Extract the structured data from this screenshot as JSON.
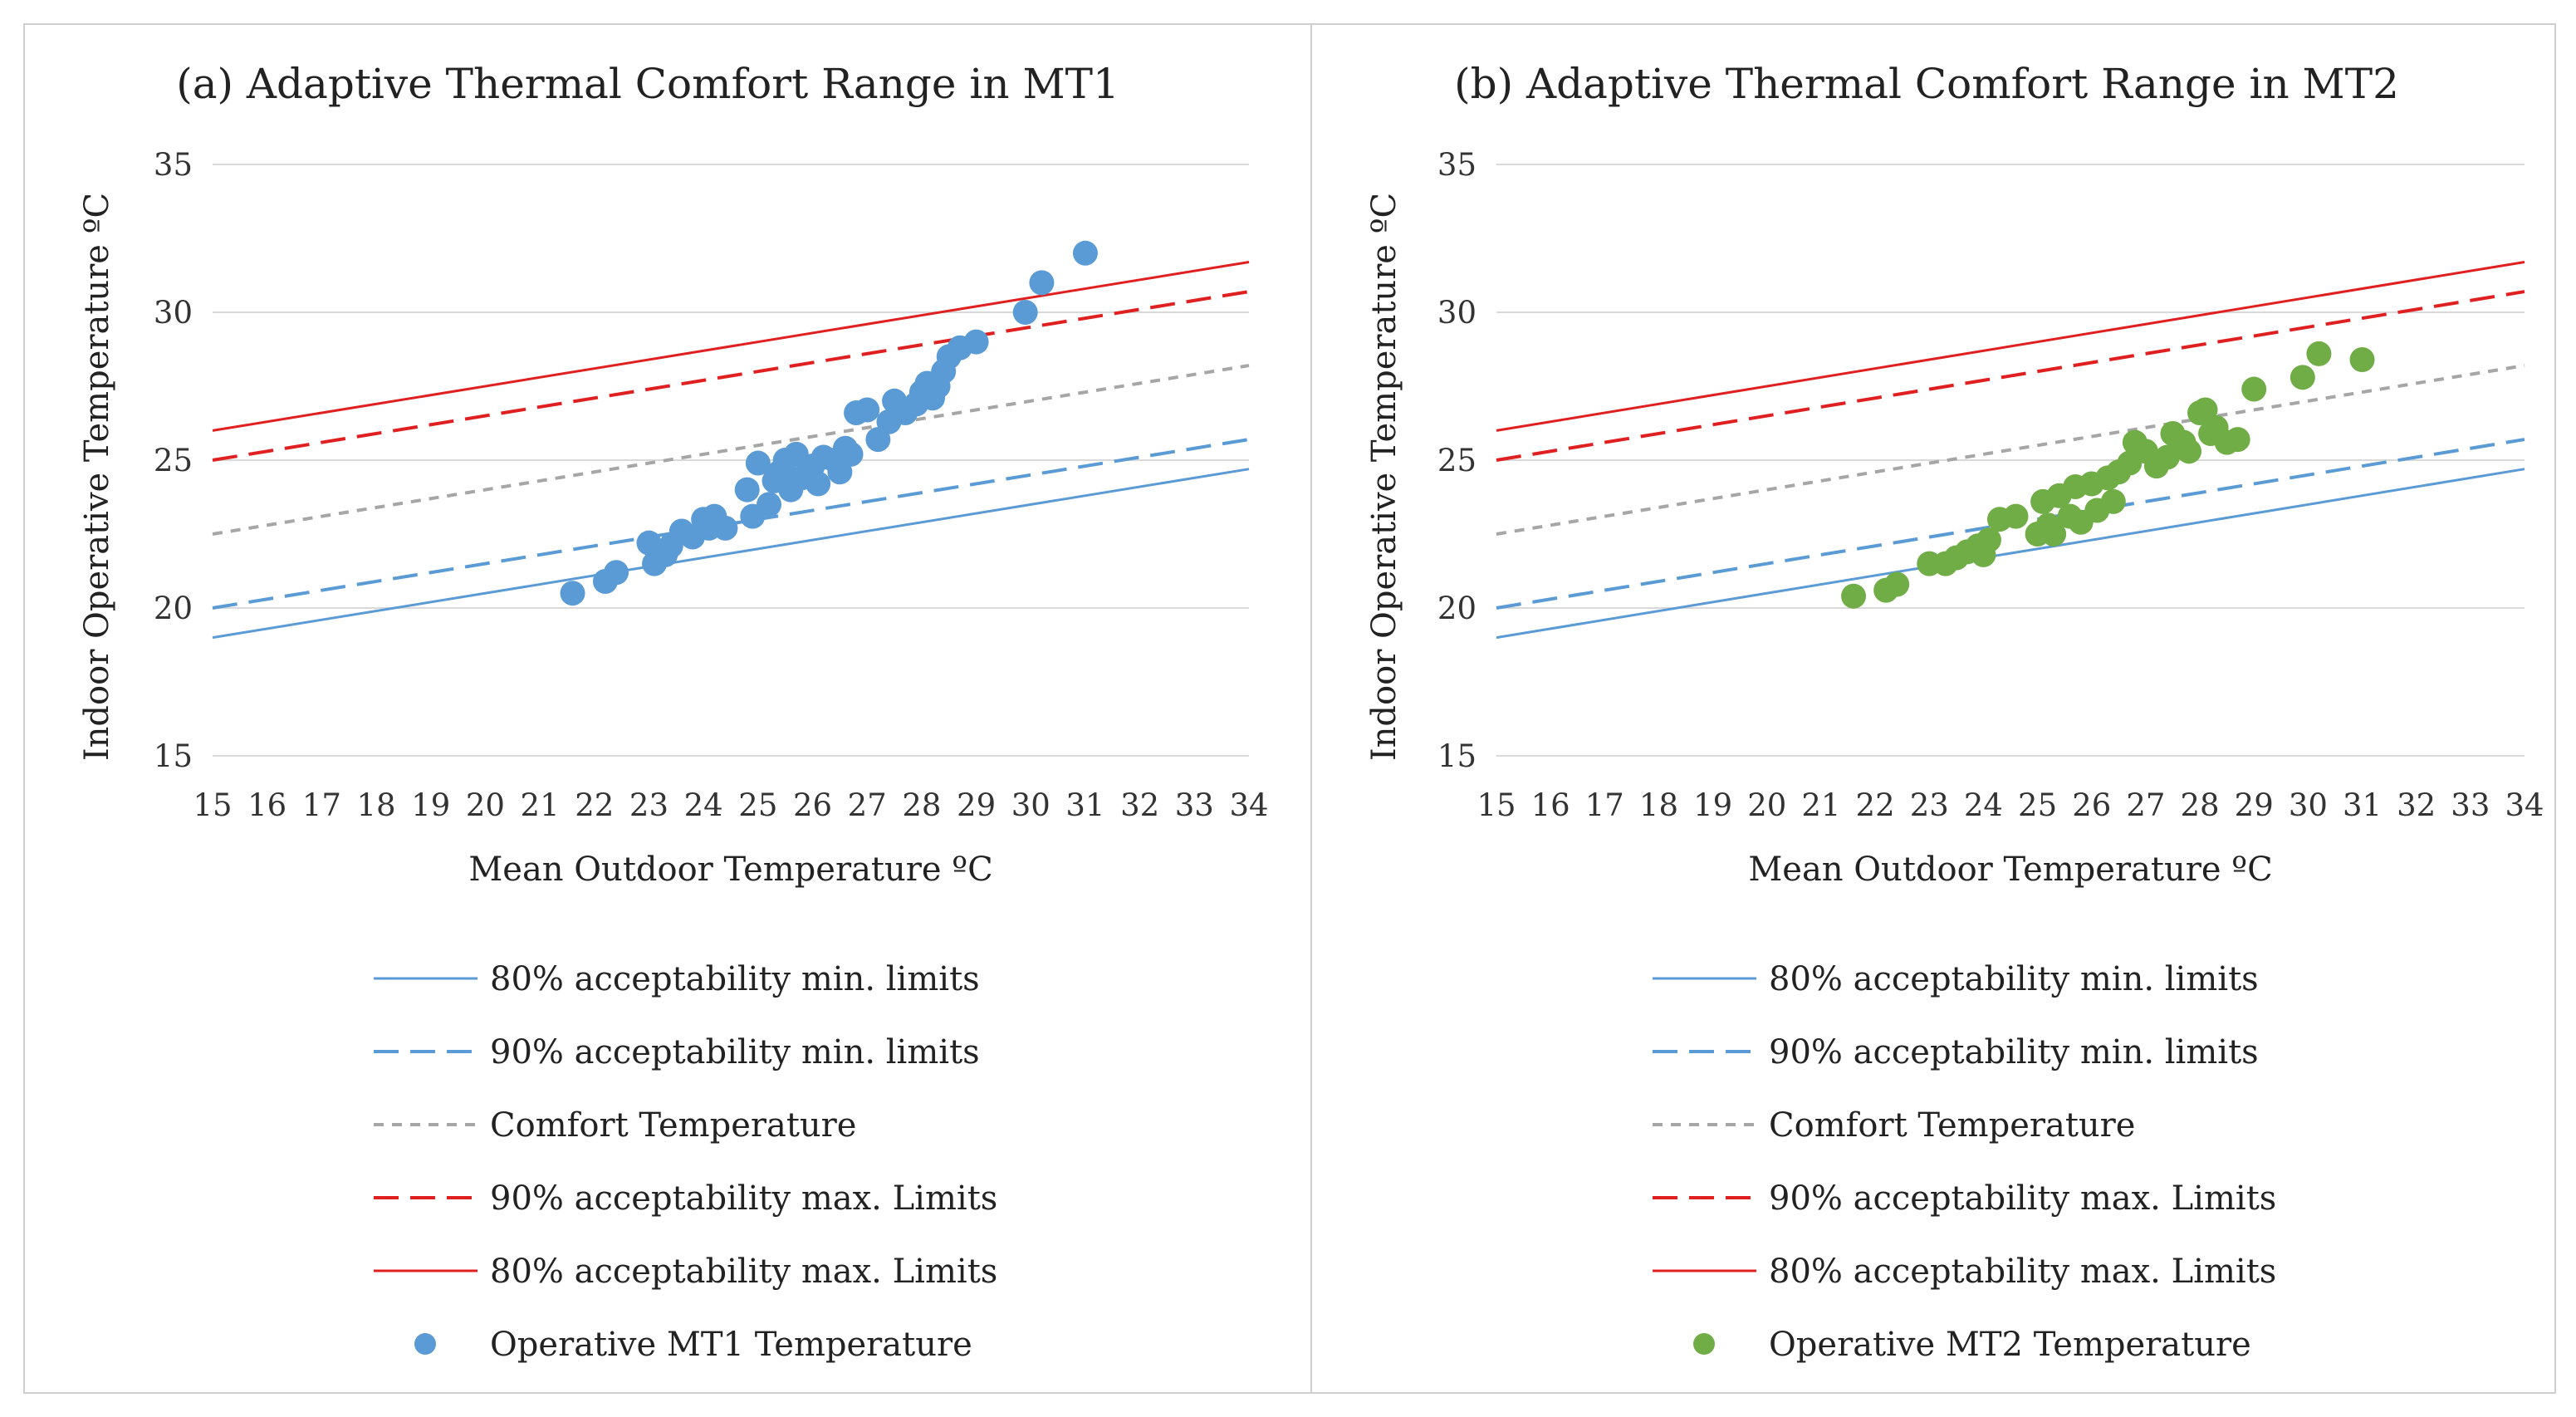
{
  "chart_data": [
    {
      "type": "scatter",
      "panel": "a",
      "title": "(a) Adaptive Thermal Comfort Range in MT1",
      "xlabel": "Mean Outdoor Temperature  ºC",
      "ylabel": "Indoor Operative Temperature   ºC",
      "xlim": [
        15,
        34
      ],
      "ylim": [
        15,
        35
      ],
      "xticks": [
        "15",
        "16",
        "17",
        "18",
        "19",
        "20",
        "21",
        "22",
        "23",
        "24",
        "25",
        "26",
        "27",
        "28",
        "29",
        "30",
        "31",
        "32",
        "33",
        "34"
      ],
      "yticks": [
        "15",
        "20",
        "25",
        "30",
        "35"
      ],
      "grid": true,
      "legend_position": "bottom",
      "lines": [
        {
          "name": "80% acceptability min. limits",
          "style": "solid",
          "color": "#5b9bd5",
          "y_at_15": 19.0,
          "y_at_34": 24.7
        },
        {
          "name": "90% acceptability min. limits",
          "style": "long-dash",
          "color": "#5b9bd5",
          "y_at_15": 20.0,
          "y_at_34": 25.7
        },
        {
          "name": "Comfort Temperature",
          "style": "dash",
          "color": "#a6a6a6",
          "y_at_15": 22.5,
          "y_at_34": 28.2
        },
        {
          "name": "90% acceptability max. Limits",
          "style": "long-dash",
          "color": "#e02020",
          "y_at_15": 25.0,
          "y_at_34": 30.7
        },
        {
          "name": "80% acceptability max. Limits",
          "style": "solid",
          "color": "#e02020",
          "y_at_15": 26.0,
          "y_at_34": 31.7
        }
      ],
      "points_series": {
        "name": "Operative MT1 Temperature",
        "color": "#5b9bd5",
        "points": [
          [
            21.6,
            20.5
          ],
          [
            22.2,
            20.9
          ],
          [
            22.4,
            21.2
          ],
          [
            23.0,
            22.2
          ],
          [
            23.1,
            21.5
          ],
          [
            23.3,
            21.8
          ],
          [
            23.4,
            22.1
          ],
          [
            23.6,
            22.6
          ],
          [
            23.8,
            22.4
          ],
          [
            24.0,
            23.0
          ],
          [
            24.1,
            22.7
          ],
          [
            24.2,
            23.1
          ],
          [
            24.4,
            22.7
          ],
          [
            24.8,
            24.0
          ],
          [
            24.9,
            23.1
          ],
          [
            25.0,
            24.9
          ],
          [
            25.2,
            23.5
          ],
          [
            25.3,
            24.3
          ],
          [
            25.4,
            24.6
          ],
          [
            25.5,
            25.0
          ],
          [
            25.6,
            24.0
          ],
          [
            25.7,
            25.2
          ],
          [
            25.8,
            24.4
          ],
          [
            26.0,
            24.8
          ],
          [
            26.1,
            24.2
          ],
          [
            26.2,
            25.1
          ],
          [
            26.4,
            25.0
          ],
          [
            26.5,
            24.6
          ],
          [
            26.6,
            25.4
          ],
          [
            26.7,
            25.2
          ],
          [
            26.8,
            26.6
          ],
          [
            27.0,
            26.7
          ],
          [
            27.2,
            25.7
          ],
          [
            27.4,
            26.3
          ],
          [
            27.5,
            27.0
          ],
          [
            27.7,
            26.6
          ],
          [
            27.9,
            26.9
          ],
          [
            28.0,
            27.3
          ],
          [
            28.1,
            27.6
          ],
          [
            28.2,
            27.1
          ],
          [
            28.3,
            27.5
          ],
          [
            28.4,
            28.0
          ],
          [
            28.5,
            28.5
          ],
          [
            28.7,
            28.8
          ],
          [
            29.0,
            29.0
          ],
          [
            29.9,
            30.0
          ],
          [
            30.2,
            31.0
          ],
          [
            31.0,
            32.0
          ]
        ]
      }
    },
    {
      "type": "scatter",
      "panel": "b",
      "title": "(b) Adaptive Thermal Comfort Range in MT2",
      "xlabel": "Mean Outdoor Temperature  ºC",
      "ylabel": "Indoor Operative Temperature   ºC",
      "xlim": [
        15,
        34
      ],
      "ylim": [
        15,
        35
      ],
      "xticks": [
        "15",
        "16",
        "17",
        "18",
        "19",
        "20",
        "21",
        "22",
        "23",
        "24",
        "25",
        "26",
        "27",
        "28",
        "29",
        "30",
        "31",
        "32",
        "33",
        "34"
      ],
      "yticks": [
        "15",
        "20",
        "25",
        "30",
        "35"
      ],
      "grid": true,
      "legend_position": "bottom",
      "lines": [
        {
          "name": "80% acceptability min. limits",
          "style": "solid",
          "color": "#5b9bd5",
          "y_at_15": 19.0,
          "y_at_34": 24.7
        },
        {
          "name": "90% acceptability min. limits",
          "style": "long-dash",
          "color": "#5b9bd5",
          "y_at_15": 20.0,
          "y_at_34": 25.7
        },
        {
          "name": "Comfort Temperature",
          "style": "dash",
          "color": "#a6a6a6",
          "y_at_15": 22.5,
          "y_at_34": 28.2
        },
        {
          "name": "90% acceptability max. Limits",
          "style": "long-dash",
          "color": "#e02020",
          "y_at_15": 25.0,
          "y_at_34": 30.7
        },
        {
          "name": "80% acceptability max. Limits",
          "style": "solid",
          "color": "#e02020",
          "y_at_15": 26.0,
          "y_at_34": 31.7
        }
      ],
      "points_series": {
        "name": "Operative MT2 Temperature",
        "color": "#70ad47",
        "points": [
          [
            21.6,
            20.4
          ],
          [
            22.2,
            20.6
          ],
          [
            22.4,
            20.8
          ],
          [
            23.0,
            21.5
          ],
          [
            23.3,
            21.5
          ],
          [
            23.5,
            21.7
          ],
          [
            23.7,
            21.9
          ],
          [
            23.9,
            22.1
          ],
          [
            24.0,
            21.8
          ],
          [
            24.1,
            22.3
          ],
          [
            24.3,
            23.0
          ],
          [
            24.6,
            23.1
          ],
          [
            25.0,
            22.5
          ],
          [
            25.1,
            23.6
          ],
          [
            25.2,
            22.8
          ],
          [
            25.3,
            22.5
          ],
          [
            25.4,
            23.8
          ],
          [
            25.6,
            23.1
          ],
          [
            25.7,
            24.1
          ],
          [
            25.8,
            22.9
          ],
          [
            26.0,
            24.2
          ],
          [
            26.1,
            23.3
          ],
          [
            26.3,
            24.4
          ],
          [
            26.4,
            23.6
          ],
          [
            26.5,
            24.6
          ],
          [
            26.7,
            24.9
          ],
          [
            26.8,
            25.6
          ],
          [
            27.0,
            25.3
          ],
          [
            27.2,
            24.8
          ],
          [
            27.4,
            25.1
          ],
          [
            27.5,
            25.9
          ],
          [
            27.7,
            25.6
          ],
          [
            27.8,
            25.3
          ],
          [
            28.0,
            26.6
          ],
          [
            28.1,
            26.7
          ],
          [
            28.2,
            25.9
          ],
          [
            28.3,
            26.1
          ],
          [
            28.5,
            25.6
          ],
          [
            28.7,
            25.7
          ],
          [
            29.0,
            27.4
          ],
          [
            29.9,
            27.8
          ],
          [
            30.2,
            28.6
          ],
          [
            31.0,
            28.4
          ]
        ]
      }
    }
  ]
}
